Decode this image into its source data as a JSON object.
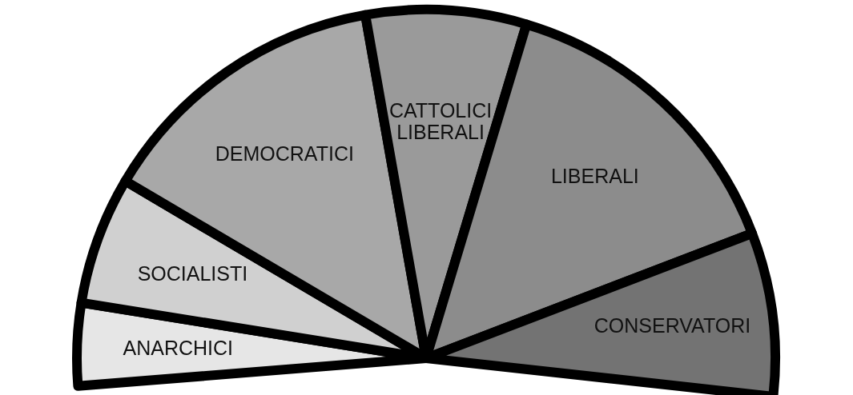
{
  "chart_data": {
    "type": "pie",
    "categories": [
      "ANARCHICI",
      "SOCIALISTI",
      "DEMOCRATICI",
      "CATTOLICI LIBERALI",
      "LIBERALI",
      "CONSERVATORI"
    ],
    "values": [
      7.2,
      11.2,
      25.9,
      14.0,
      27.4,
      14.3
    ],
    "colors": [
      "#e6e6e6",
      "#d0d0d0",
      "#a8a8a8",
      "#9a9a9a",
      "#8c8c8c",
      "#737373"
    ]
  }
}
